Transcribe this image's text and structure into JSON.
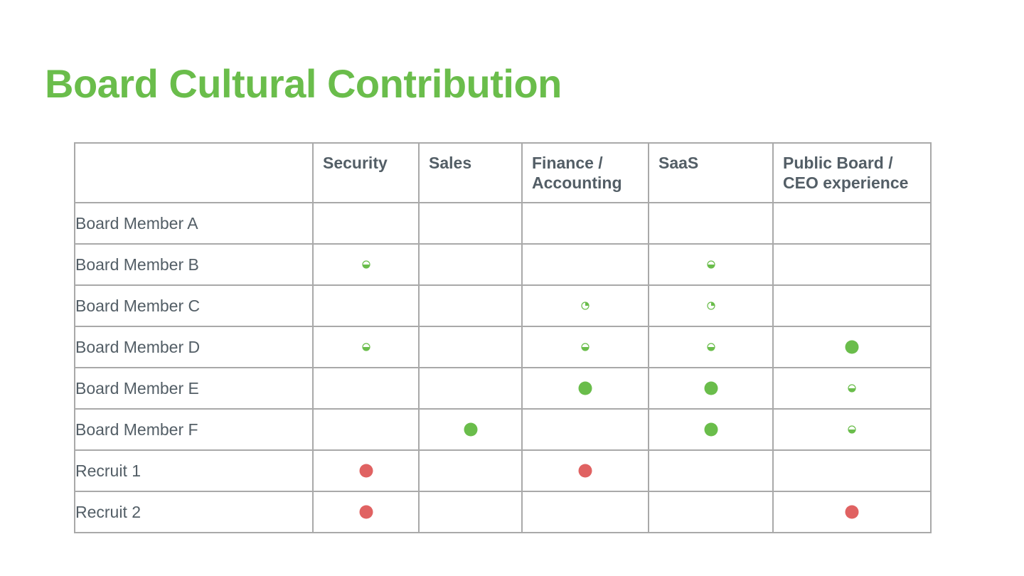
{
  "colors": {
    "title": "#6abd4b",
    "text": "#535e66",
    "green": "#6abd4b",
    "red": "#e06262",
    "grid": "#a9a9a9"
  },
  "slide": {
    "title": "Board Cultural Contribution"
  },
  "table": {
    "corner_header": "",
    "columns": [
      "Security",
      "Sales",
      "Finance / Accounting",
      "SaaS",
      "Public Board / CEO experience"
    ],
    "rows": [
      {
        "label": "Board Member A",
        "marks": [
          "",
          "",
          "",
          "",
          ""
        ]
      },
      {
        "label": "Board Member B",
        "marks": [
          "half",
          "",
          "",
          "half",
          ""
        ]
      },
      {
        "label": "Board Member C",
        "marks": [
          "",
          "",
          "quarter",
          "quarter",
          ""
        ]
      },
      {
        "label": "Board Member D",
        "marks": [
          "half",
          "",
          "half",
          "half",
          "full"
        ]
      },
      {
        "label": "Board Member E",
        "marks": [
          "",
          "",
          "full",
          "full",
          "half"
        ]
      },
      {
        "label": "Board Member F",
        "marks": [
          "",
          "full",
          "",
          "full",
          "half"
        ]
      },
      {
        "label": "Recruit 1",
        "marks": [
          "red",
          "",
          "red",
          "",
          ""
        ]
      },
      {
        "label": "Recruit 2",
        "marks": [
          "red",
          "",
          "",
          "",
          "red"
        ]
      }
    ]
  },
  "legend": {
    "full": "green-filled-circle-icon",
    "half": "green-half-circle-icon",
    "quarter": "green-quarter-circle-icon",
    "red": "red-filled-circle-icon"
  }
}
